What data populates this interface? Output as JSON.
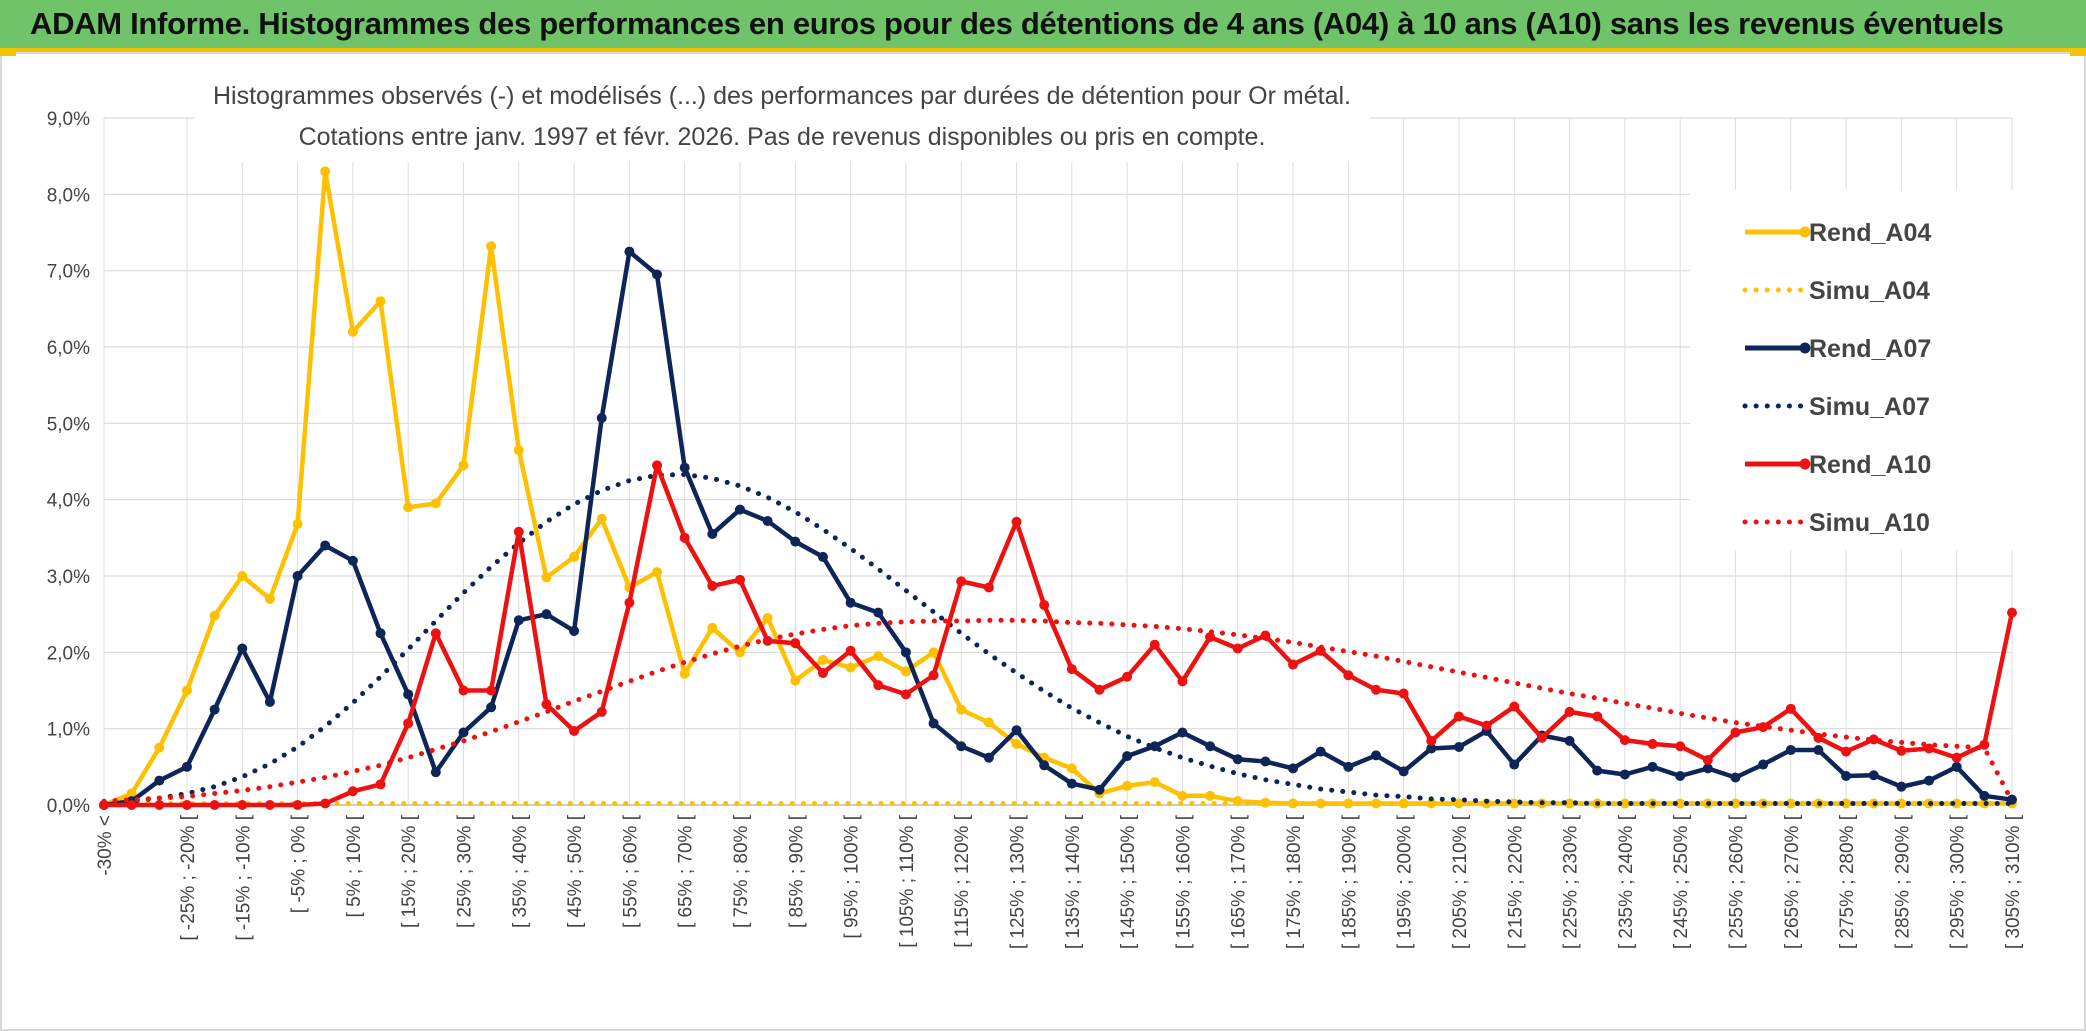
{
  "header": {
    "title": "ADAM Informe. Histogrammes des performances en euros pour des détentions de 4 ans (A04) à 10 ans (A10) sans les revenus éventuels"
  },
  "colors": {
    "header_bg": "#6fc46a",
    "accent": "#f2c300",
    "A04": "#ffc000",
    "A07": "#0e2557",
    "A10": "#ee1111"
  },
  "chart_data": {
    "type": "line",
    "title_lines": [
      "Histogrammes observés (-) et modélisés (...) des performances par durées de détention pour Or métal.",
      "Cotations entre janv. 1997 et févr. 2026. Pas de revenus disponibles ou pris en compte."
    ],
    "ylim": [
      0,
      9
    ],
    "yticks": [
      "0,0%",
      "1,0%",
      "2,0%",
      "3,0%",
      "4,0%",
      "5,0%",
      "6,0%",
      "7,0%",
      "8,0%",
      "9,0%"
    ],
    "xtick_labels": [
      "-30% <",
      "[ -25% ; -20% [",
      "[ -15% ; -10% [",
      "[ -5% ; 0% [",
      "[ 5% ; 10% [",
      "[ 15% ; 20% [",
      "[ 25% ; 30% [",
      "[ 35% ; 40% [",
      "[ 45% ; 50% [",
      "[ 55% ; 60% [",
      "[ 65% ; 70% [",
      "[ 75% ; 80% [",
      "[ 85% ; 90% [",
      "[ 95% ; 100% [",
      "[ 105% ; 110% [",
      "[ 115% ; 120% [",
      "[ 125% ; 130% [",
      "[ 135% ; 140% [",
      "[ 145% ; 150% [",
      "[ 155% ; 160% [",
      "[ 165% ; 170% [",
      "[ 175% ; 180% [",
      "[ 185% ; 190% [",
      "[ 195% ; 200% [",
      "[ 205% ; 210% [",
      "[ 215% ; 220% [",
      "[ 225% ; 230% [",
      "[ 235% ; 240% [",
      "[ 245% ; 250% [",
      "[ 255% ; 260% [",
      "[ 265% ; 270% [",
      "[ 275% ; 280% [",
      "[ 285% ; 290% [",
      "[ 295% ; 300% [",
      "[ 305% ; 310% ["
    ],
    "legend_position": "right",
    "series": [
      {
        "name": "Rend_A04",
        "style": "solid",
        "color": "#ffc000",
        "values": [
          0.0,
          0.15,
          0.75,
          1.5,
          2.48,
          3.0,
          2.7,
          3.68,
          8.3,
          6.2,
          6.6,
          3.9,
          3.95,
          4.45,
          7.32,
          4.65,
          2.98,
          3.25,
          3.75,
          2.85,
          3.05,
          1.72,
          2.32,
          2.0,
          2.45,
          1.63,
          1.9,
          1.8,
          1.95,
          1.75,
          2.0,
          1.25,
          1.08,
          0.8,
          0.62,
          0.48,
          0.15,
          0.25,
          0.3,
          0.12,
          0.12,
          0.05,
          0.03,
          0.02,
          0.02,
          0.02,
          0.02,
          0.02,
          0.02,
          0.02,
          0.02,
          0.02,
          0.02,
          0.02,
          0.02,
          0.02,
          0.02,
          0.02,
          0.02,
          0.02,
          0.02,
          0.02,
          0.02,
          0.02,
          0.02,
          0.02,
          0.02,
          0.02,
          0.02,
          0.02
        ]
      },
      {
        "name": "Simu_A04",
        "style": "dotted",
        "color": "#ffc000",
        "values": [
          0.02,
          0.02,
          0.02,
          0.02,
          0.02,
          0.02,
          0.02,
          0.02,
          0.02,
          0.02,
          0.02,
          0.02,
          0.02,
          0.02,
          0.02,
          0.02,
          0.02,
          0.02,
          0.02,
          0.02,
          0.02,
          0.02,
          0.02,
          0.02,
          0.02,
          0.02,
          0.02,
          0.02,
          0.02,
          0.02,
          0.02,
          0.02,
          0.02,
          0.02,
          0.02,
          0.02,
          0.02,
          0.02,
          0.02,
          0.02,
          0.02,
          0.02,
          0.02,
          0.02,
          0.02,
          0.02,
          0.02,
          0.02,
          0.02,
          0.02,
          0.02,
          0.02,
          0.02,
          0.02,
          0.02,
          0.02,
          0.02,
          0.02,
          0.02,
          0.02,
          0.02,
          0.02,
          0.02,
          0.02,
          0.02,
          0.02,
          0.02,
          0.02,
          0.02,
          0.02
        ]
      },
      {
        "name": "Rend_A07",
        "style": "solid",
        "color": "#0e2557",
        "values": [
          0.0,
          0.05,
          0.32,
          0.5,
          1.25,
          2.05,
          1.35,
          3.0,
          3.4,
          3.2,
          2.25,
          1.45,
          0.43,
          0.95,
          1.28,
          2.42,
          2.5,
          2.28,
          5.07,
          7.25,
          6.95,
          4.42,
          3.55,
          3.87,
          3.72,
          3.45,
          3.25,
          2.65,
          2.52,
          2.0,
          1.07,
          0.77,
          0.62,
          0.98,
          0.52,
          0.28,
          0.2,
          0.64,
          0.77,
          0.95,
          0.77,
          0.6,
          0.57,
          0.48,
          0.7,
          0.5,
          0.65,
          0.44,
          0.74,
          0.76,
          0.97,
          0.53,
          0.91,
          0.84,
          0.45,
          0.4,
          0.5,
          0.38,
          0.48,
          0.36,
          0.53,
          0.72,
          0.72,
          0.38,
          0.39,
          0.24,
          0.32,
          0.5,
          0.12,
          0.07
        ]
      },
      {
        "name": "Simu_A07",
        "style": "dotted",
        "color": "#0e2557",
        "values": [
          0.02,
          0.05,
          0.09,
          0.15,
          0.24,
          0.37,
          0.54,
          0.76,
          1.03,
          1.34,
          1.68,
          2.04,
          2.41,
          2.78,
          3.12,
          3.43,
          3.71,
          3.94,
          4.12,
          4.25,
          4.32,
          4.33,
          4.28,
          4.18,
          4.03,
          3.84,
          3.61,
          3.36,
          3.09,
          2.81,
          2.53,
          2.25,
          1.98,
          1.73,
          1.49,
          1.27,
          1.08,
          0.9,
          0.75,
          0.62,
          0.51,
          0.41,
          0.33,
          0.27,
          0.21,
          0.17,
          0.13,
          0.11,
          0.08,
          0.07,
          0.05,
          0.04,
          0.03,
          0.03,
          0.02,
          0.02,
          0.02,
          0.02,
          0.02,
          0.02,
          0.02,
          0.02,
          0.02,
          0.02,
          0.02,
          0.02,
          0.02,
          0.02,
          0.02,
          0.02
        ]
      },
      {
        "name": "Rend_A10",
        "style": "solid",
        "color": "#ee1111",
        "values": [
          0.0,
          0.0,
          0.0,
          0.0,
          0.0,
          0.0,
          0.0,
          0.0,
          0.02,
          0.18,
          0.27,
          1.07,
          2.25,
          1.5,
          1.5,
          3.58,
          1.32,
          0.97,
          1.22,
          2.65,
          4.45,
          3.5,
          2.87,
          2.95,
          2.15,
          2.12,
          1.73,
          2.02,
          1.57,
          1.45,
          1.7,
          2.93,
          2.85,
          3.71,
          2.62,
          1.78,
          1.51,
          1.68,
          2.1,
          1.62,
          2.2,
          2.05,
          2.22,
          1.84,
          2.02,
          1.7,
          1.51,
          1.46,
          0.84,
          1.16,
          1.04,
          1.29,
          0.88,
          1.22,
          1.16,
          0.85,
          0.8,
          0.77,
          0.59,
          0.95,
          1.02,
          1.26,
          0.88,
          0.7,
          0.86,
          0.71,
          0.74,
          0.62,
          0.79,
          2.52
        ]
      },
      {
        "name": "Simu_A10",
        "style": "dotted",
        "color": "#ee1111",
        "values": [
          0.05,
          0.07,
          0.09,
          0.11,
          0.15,
          0.19,
          0.24,
          0.3,
          0.36,
          0.44,
          0.52,
          0.62,
          0.73,
          0.84,
          0.96,
          1.09,
          1.22,
          1.36,
          1.49,
          1.62,
          1.75,
          1.87,
          1.98,
          2.08,
          2.17,
          2.24,
          2.3,
          2.35,
          2.38,
          2.4,
          2.41,
          2.41,
          2.42,
          2.42,
          2.41,
          2.39,
          2.38,
          2.36,
          2.34,
          2.31,
          2.27,
          2.23,
          2.18,
          2.13,
          2.07,
          2.01,
          1.95,
          1.88,
          1.81,
          1.74,
          1.67,
          1.6,
          1.53,
          1.46,
          1.4,
          1.33,
          1.27,
          1.2,
          1.14,
          1.08,
          1.03,
          0.98,
          0.93,
          0.89,
          0.85,
          0.82,
          0.79,
          0.77,
          0.75,
          0.05
        ]
      }
    ]
  }
}
